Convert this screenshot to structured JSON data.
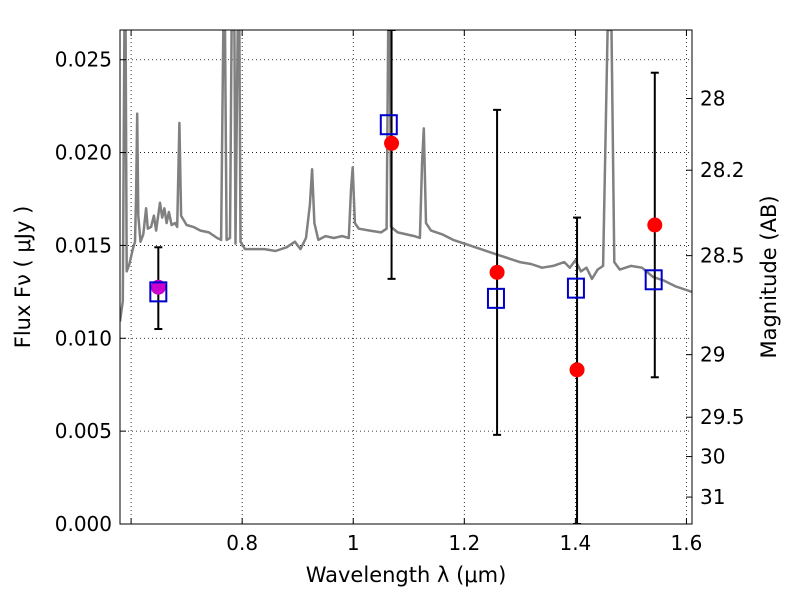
{
  "chart_data": {
    "type": "scatter",
    "title": "",
    "xlabel": "Wavelength  λ (μm)",
    "ylabel": "Flux  Fν  ( μJy )",
    "ylabel_right": "Magnitude (AB)",
    "xlim": [
      0.58,
      1.61
    ],
    "ylim": [
      0.0,
      0.0266
    ],
    "grid": true,
    "x_ticks": [
      0.6,
      0.8,
      1.0,
      1.2,
      1.4,
      1.6
    ],
    "x_tick_labels": [
      "",
      "0.8",
      "1",
      "1.2",
      "1.4",
      "1.6"
    ],
    "y_ticks": [
      0.0,
      0.005,
      0.01,
      0.015,
      0.02,
      0.025
    ],
    "y_tick_labels": [
      "0.000",
      "0.005",
      "0.010",
      "0.015",
      "0.020",
      "0.025"
    ],
    "y2_ticks": [
      {
        "label": "28",
        "flux": 0.02291
      },
      {
        "label": "28.2",
        "flux": 0.01905
      },
      {
        "label": "28.5",
        "flux": 0.01445
      },
      {
        "label": "29",
        "flux": 0.00912
      },
      {
        "label": "29.5",
        "flux": 0.00575
      },
      {
        "label": "30",
        "flux": 0.00363
      },
      {
        "label": "31",
        "flux": 0.00145
      }
    ],
    "series": [
      {
        "kind": "line",
        "color": "#808080",
        "points": [
          [
            0.58,
            0.0109
          ],
          [
            0.585,
            0.012
          ],
          [
            0.588,
            0.0266
          ],
          [
            0.59,
            0.0266
          ],
          [
            0.592,
            0.0136
          ],
          [
            0.597,
            0.014
          ],
          [
            0.603,
            0.0148
          ],
          [
            0.607,
            0.0152
          ],
          [
            0.609,
            0.0177
          ],
          [
            0.611,
            0.0221
          ],
          [
            0.613,
            0.0166
          ],
          [
            0.617,
            0.0152
          ],
          [
            0.622,
            0.0156
          ],
          [
            0.627,
            0.017
          ],
          [
            0.63,
            0.0159
          ],
          [
            0.636,
            0.016
          ],
          [
            0.641,
            0.0166
          ],
          [
            0.645,
            0.0158
          ],
          [
            0.652,
            0.0173
          ],
          [
            0.656,
            0.0165
          ],
          [
            0.66,
            0.017
          ],
          [
            0.664,
            0.0162
          ],
          [
            0.668,
            0.0168
          ],
          [
            0.673,
            0.0161
          ],
          [
            0.679,
            0.0162
          ],
          [
            0.683,
            0.016
          ],
          [
            0.687,
            0.0216
          ],
          [
            0.69,
            0.0166
          ],
          [
            0.7,
            0.0161
          ],
          [
            0.712,
            0.016
          ],
          [
            0.725,
            0.0158
          ],
          [
            0.74,
            0.0157
          ],
          [
            0.755,
            0.0154
          ],
          [
            0.762,
            0.0153
          ],
          [
            0.766,
            0.0266
          ],
          [
            0.769,
            0.0266
          ],
          [
            0.772,
            0.0153
          ],
          [
            0.778,
            0.0154
          ],
          [
            0.781,
            0.0266
          ],
          [
            0.786,
            0.0266
          ],
          [
            0.788,
            0.0151
          ],
          [
            0.792,
            0.0266
          ],
          [
            0.795,
            0.0266
          ],
          [
            0.797,
            0.0152
          ],
          [
            0.805,
            0.0148
          ],
          [
            0.82,
            0.0148
          ],
          [
            0.84,
            0.0148
          ],
          [
            0.86,
            0.0147
          ],
          [
            0.88,
            0.0149
          ],
          [
            0.895,
            0.0152
          ],
          [
            0.905,
            0.0148
          ],
          [
            0.915,
            0.0154
          ],
          [
            0.922,
            0.0172
          ],
          [
            0.926,
            0.0191
          ],
          [
            0.93,
            0.0162
          ],
          [
            0.937,
            0.0153
          ],
          [
            0.95,
            0.0155
          ],
          [
            0.965,
            0.0154
          ],
          [
            0.98,
            0.0155
          ],
          [
            0.992,
            0.0154
          ],
          [
            0.996,
            0.018
          ],
          [
            0.999,
            0.0192
          ],
          [
            1.003,
            0.0162
          ],
          [
            1.01,
            0.0159
          ],
          [
            1.03,
            0.0158
          ],
          [
            1.05,
            0.0157
          ],
          [
            1.06,
            0.0159
          ],
          [
            1.063,
            0.0266
          ],
          [
            1.066,
            0.0266
          ],
          [
            1.068,
            0.016
          ],
          [
            1.08,
            0.0157
          ],
          [
            1.11,
            0.0155
          ],
          [
            1.12,
            0.0154
          ],
          [
            1.124,
            0.0195
          ],
          [
            1.127,
            0.0213
          ],
          [
            1.131,
            0.0162
          ],
          [
            1.14,
            0.0158
          ],
          [
            1.16,
            0.0156
          ],
          [
            1.18,
            0.0153
          ],
          [
            1.2,
            0.0151
          ],
          [
            1.22,
            0.0149
          ],
          [
            1.25,
            0.0146
          ],
          [
            1.28,
            0.0143
          ],
          [
            1.3,
            0.0141
          ],
          [
            1.32,
            0.014
          ],
          [
            1.34,
            0.0138
          ],
          [
            1.36,
            0.0139
          ],
          [
            1.38,
            0.0141
          ],
          [
            1.39,
            0.0138
          ],
          [
            1.4,
            0.0142
          ],
          [
            1.41,
            0.0136
          ],
          [
            1.42,
            0.0138
          ],
          [
            1.43,
            0.0132
          ],
          [
            1.44,
            0.0137
          ],
          [
            1.45,
            0.0139
          ],
          [
            1.458,
            0.0266
          ],
          [
            1.465,
            0.0266
          ],
          [
            1.47,
            0.0141
          ],
          [
            1.48,
            0.0137
          ],
          [
            1.5,
            0.0139
          ],
          [
            1.52,
            0.0138
          ],
          [
            1.54,
            0.0133
          ],
          [
            1.56,
            0.0131
          ],
          [
            1.58,
            0.0128
          ],
          [
            1.6,
            0.0126
          ],
          [
            1.61,
            0.0125
          ]
        ]
      },
      {
        "kind": "errorbar",
        "color": "#000000",
        "points": [
          {
            "x": 0.649,
            "low": 0.0105,
            "high": 0.0149
          },
          {
            "x": 1.069,
            "low": 0.0132,
            "high": 0.0266
          },
          {
            "x": 1.259,
            "low": 0.0048,
            "high": 0.0223
          },
          {
            "x": 1.403,
            "low": 0.0,
            "high": 0.0165
          },
          {
            "x": 1.543,
            "low": 0.0079,
            "high": 0.0243
          }
        ]
      },
      {
        "kind": "scatter",
        "marker": "circle",
        "color": "#ff0000",
        "points": [
          {
            "x": 0.649,
            "y": 0.01275
          },
          {
            "x": 1.069,
            "y": 0.0205
          },
          {
            "x": 1.259,
            "y": 0.01355
          },
          {
            "x": 1.403,
            "y": 0.0083
          },
          {
            "x": 1.543,
            "y": 0.0161
          }
        ]
      },
      {
        "kind": "scatter",
        "marker": "square",
        "color": "#0000cc",
        "points": [
          {
            "x": 0.649,
            "y": 0.0125
          },
          {
            "x": 1.064,
            "y": 0.0215
          },
          {
            "x": 1.257,
            "y": 0.01215
          },
          {
            "x": 1.401,
            "y": 0.0127
          },
          {
            "x": 1.541,
            "y": 0.01315
          }
        ]
      }
    ],
    "overlap_marker_color": "#cc00cc"
  }
}
